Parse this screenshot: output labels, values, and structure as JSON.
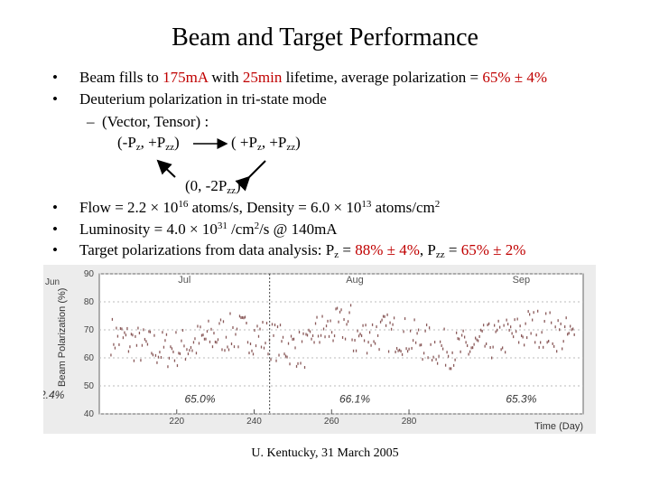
{
  "title": "Beam and Target Performance",
  "bullet_glyph": "•",
  "dash_glyph": "–",
  "b1": {
    "pre": "Beam fills to ",
    "current": "175mA",
    "mid": " with ",
    "lifetime": "25min",
    "mid2": " lifetime, average polarization = ",
    "pol": "65% ± 4%"
  },
  "b2": {
    "text": "Deuterium polarization in tri-state mode"
  },
  "sub1": {
    "text": "(Vector, Tensor) :"
  },
  "modes": {
    "m1": {
      "a": "(-P",
      "s1": "z",
      "b": ", +P",
      "s2": "zz",
      "c": ")"
    },
    "m2": {
      "a": "( +P",
      "s1": "z",
      "b": ", +P",
      "s2": "zz",
      "c": ")"
    },
    "m3": {
      "a": "(0, -2P",
      "s1": "zz",
      "c": ")"
    }
  },
  "b3": {
    "a": "Flow = 2.2 × 10",
    "e1": "16",
    "b": " atoms/s, Density = 6.0 × 10",
    "e2": "13",
    "c": " atoms/cm",
    "e3": "2"
  },
  "b4": {
    "a": "Luminosity = 4.0 × 10",
    "e1": "31",
    "b": " /cm",
    "e2": "2",
    "c": "/s @ 140mA"
  },
  "b5": {
    "a": "Target polarizations from data analysis: P",
    "s1": "z",
    "b": " = ",
    "v1": "88% ± 4%",
    "c": ", P",
    "s2": "zz",
    "d": " = ",
    "v2": "65% ± 2%"
  },
  "footer": "U. Kentucky, 31 March 2005",
  "chart_data": {
    "type": "scatter",
    "ylabel": "Beam Polarization (%)",
    "xlabel": "Time (Day)",
    "ylim": [
      40,
      90
    ],
    "xlim": [
      200,
      325
    ],
    "y_ticks": [
      "90",
      "80",
      "70",
      "60",
      "50",
      "40"
    ],
    "x_ticks": [
      "220",
      "240",
      "260",
      "280"
    ],
    "months": [
      {
        "label": "Jul",
        "x": 222
      },
      {
        "label": "Aug",
        "x": 266
      },
      {
        "label": "Sep",
        "x": 309
      }
    ],
    "annotations": [
      {
        "label": "65.0%",
        "x": 226,
        "y": 45
      },
      {
        "label": "66.1%",
        "x": 266,
        "y": 45
      },
      {
        "label": "65.3%",
        "x": 309,
        "y": 45
      }
    ],
    "left_edge_label": "2.4%",
    "left_edge_axis_fragment": "Jun",
    "divider_x": 244,
    "marker_color": "#8a5a5a"
  }
}
